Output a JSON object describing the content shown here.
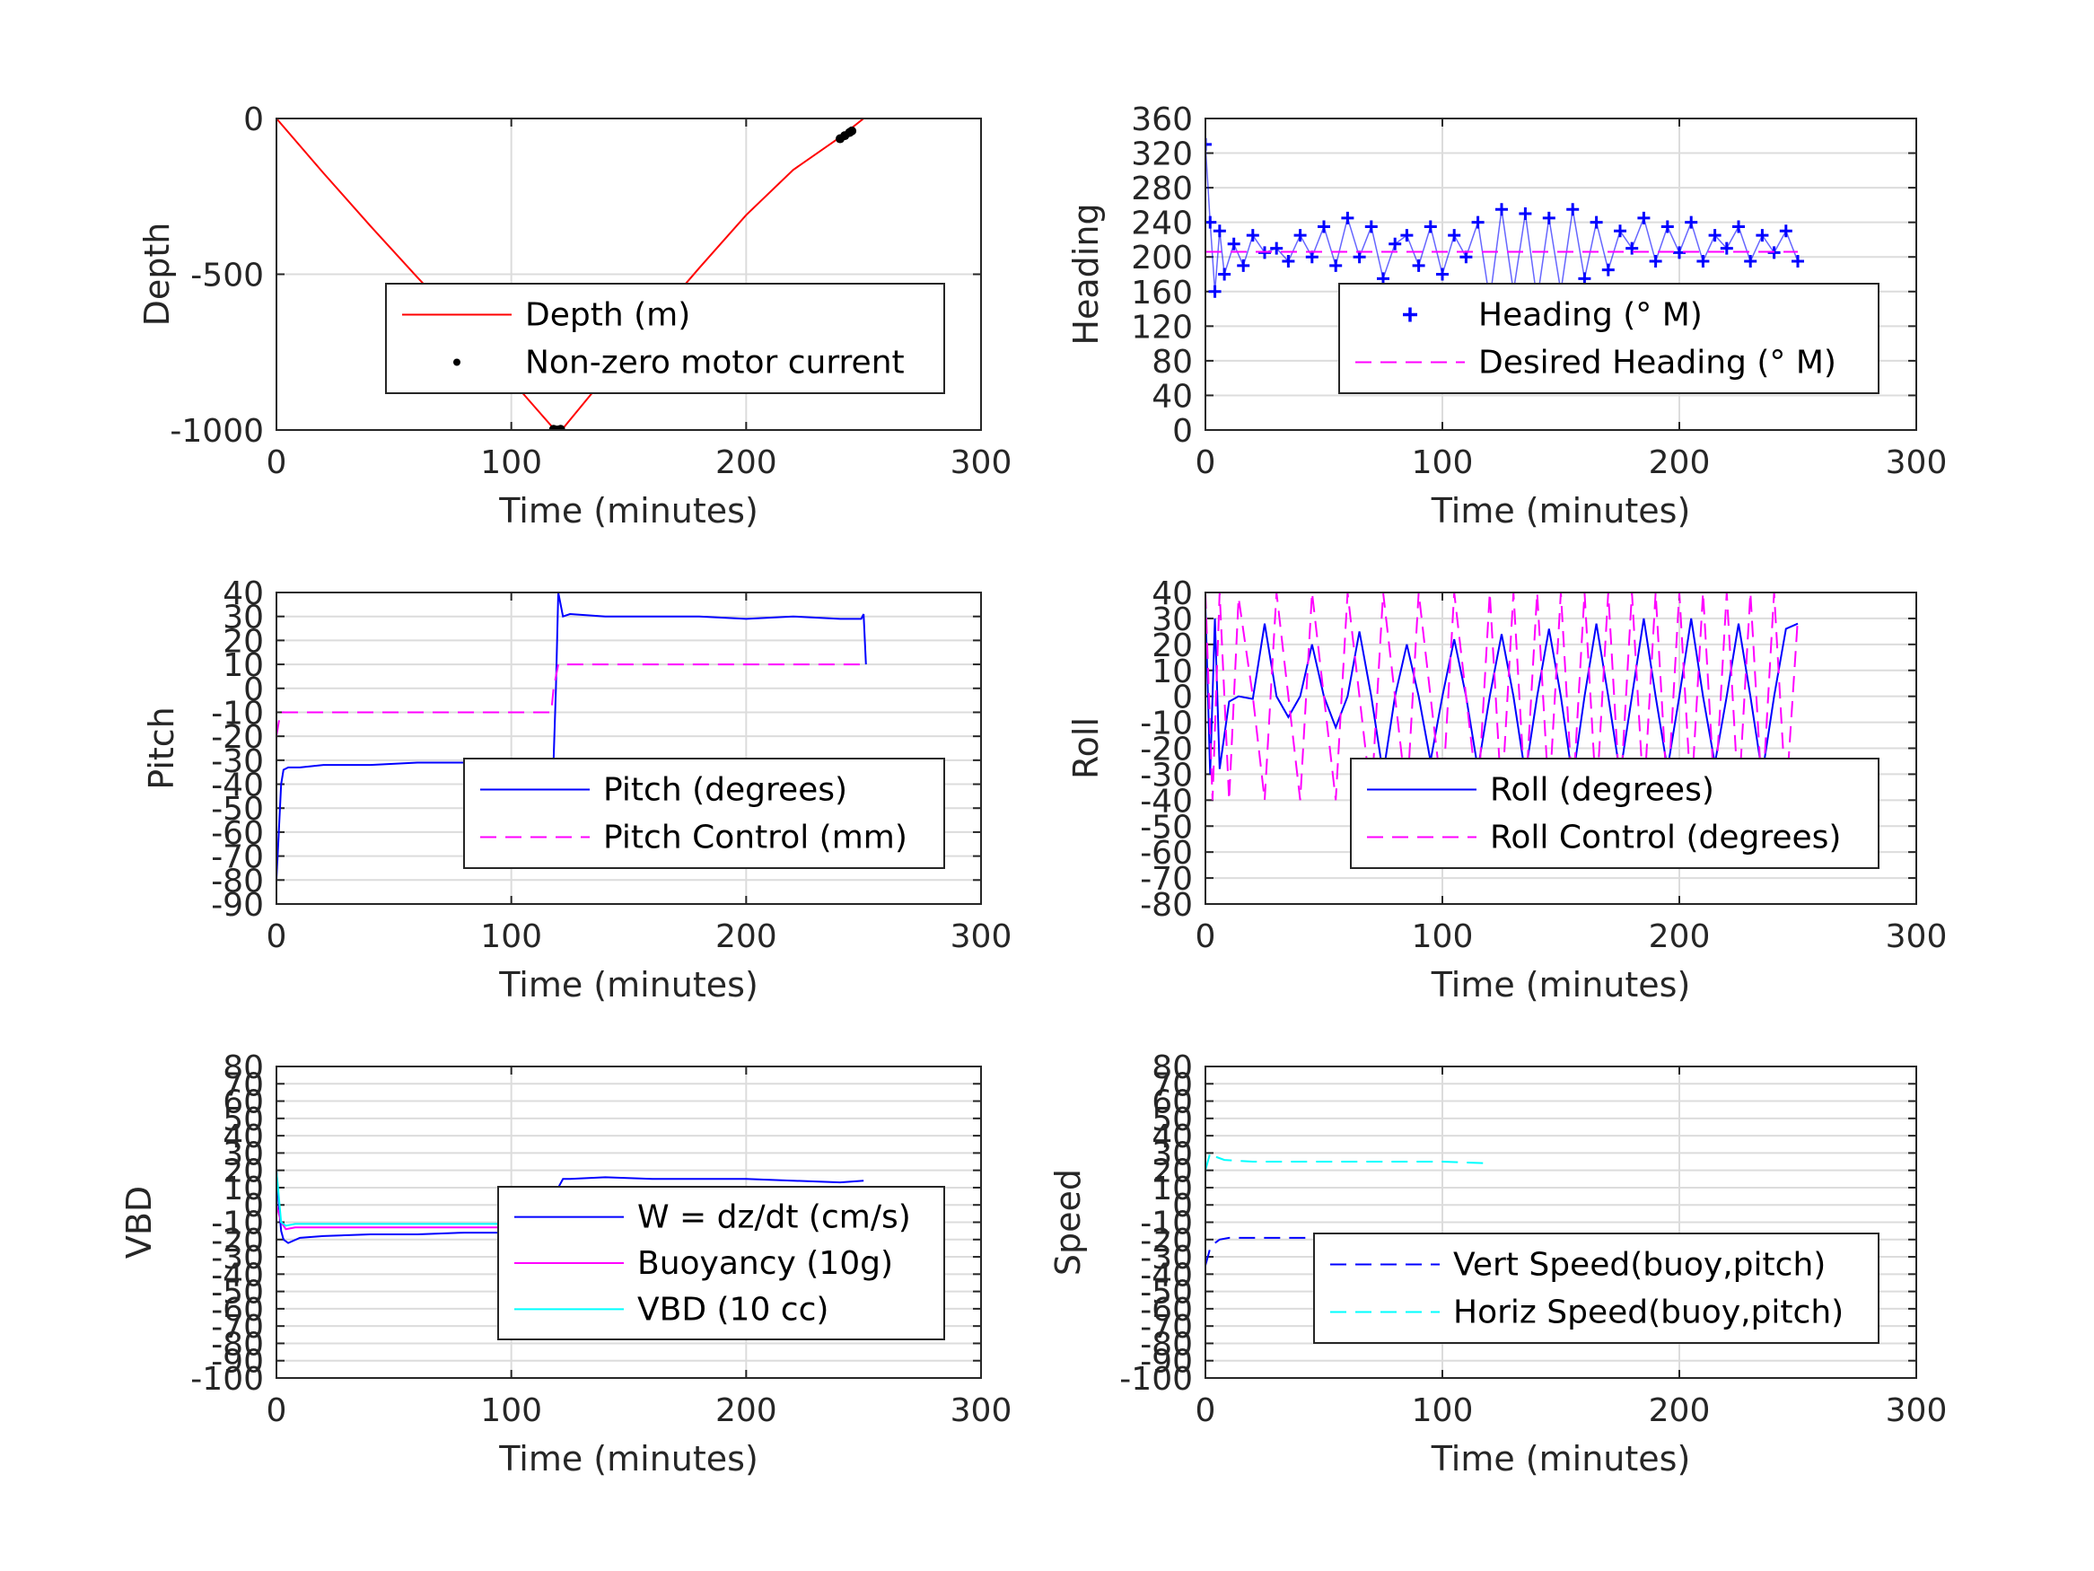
{
  "chart_data": [
    {
      "type": "line",
      "xlabel": "Time (minutes)",
      "ylabel": "Depth",
      "xlim": [
        0,
        300
      ],
      "ylim": [
        -1000,
        0
      ],
      "xticks": [
        "0",
        "100",
        "200",
        "300"
      ],
      "yticks": [
        "0",
        "-500",
        "-1000"
      ],
      "grid": true,
      "legend_position": "center-right",
      "series": [
        {
          "name": "Depth (m)",
          "color": "#ff0000",
          "style": "solid",
          "x": [
            0,
            20,
            40,
            60,
            80,
            100,
            118,
            120,
            122,
            140,
            160,
            180,
            200,
            220,
            240,
            250
          ],
          "y": [
            0,
            -175,
            -345,
            -510,
            -670,
            -840,
            -995,
            -1000,
            -995,
            -830,
            -655,
            -480,
            -310,
            -165,
            -60,
            0
          ]
        },
        {
          "name": "Non-zero motor current",
          "color": "#000000",
          "style": "marker",
          "x": [
            118,
            119,
            120,
            121,
            240,
            242,
            244,
            245
          ],
          "y": [
            -998,
            -1000,
            -1000,
            -998,
            -65,
            -55,
            -45,
            -40
          ]
        }
      ]
    },
    {
      "type": "scatter",
      "xlabel": "Time (minutes)",
      "ylabel": "Heading",
      "xlim": [
        0,
        300
      ],
      "ylim": [
        0,
        360
      ],
      "xticks": [
        "0",
        "100",
        "200",
        "300"
      ],
      "yticks": [
        "0",
        "40",
        "80",
        "120",
        "160",
        "200",
        "240",
        "280",
        "320",
        "360"
      ],
      "grid": true,
      "legend_position": "center-right",
      "series": [
        {
          "name": "Heading (° M)",
          "color": "#0000ff",
          "style": "plus",
          "x": [
            0,
            2,
            4,
            6,
            8,
            12,
            16,
            20,
            25,
            30,
            35,
            40,
            45,
            50,
            55,
            60,
            65,
            70,
            75,
            80,
            85,
            90,
            95,
            100,
            105,
            110,
            115,
            120,
            125,
            130,
            135,
            140,
            145,
            150,
            155,
            160,
            165,
            170,
            175,
            180,
            185,
            190,
            195,
            200,
            205,
            210,
            215,
            220,
            225,
            230,
            235,
            240,
            245,
            250
          ],
          "y": [
            330,
            240,
            160,
            230,
            180,
            215,
            190,
            225,
            205,
            210,
            195,
            225,
            200,
            235,
            190,
            245,
            200,
            235,
            175,
            215,
            225,
            190,
            235,
            180,
            225,
            200,
            240,
            150,
            255,
            160,
            250,
            150,
            245,
            160,
            255,
            175,
            240,
            185,
            230,
            210,
            245,
            195,
            235,
            205,
            240,
            195,
            225,
            210,
            235,
            195,
            225,
            205,
            230,
            195
          ]
        },
        {
          "name": "Desired Heading (° M)",
          "color": "#ff00ff",
          "style": "dashed",
          "x": [
            0,
            250
          ],
          "y": [
            206,
            206
          ]
        }
      ]
    },
    {
      "type": "line",
      "xlabel": "Time (minutes)",
      "ylabel": "Pitch",
      "xlim": [
        0,
        300
      ],
      "ylim": [
        -90,
        40
      ],
      "xticks": [
        "0",
        "100",
        "200",
        "300"
      ],
      "yticks": [
        "40",
        "30",
        "20",
        "10",
        "0",
        "-10",
        "-20",
        "-30",
        "-40",
        "-50",
        "-60",
        "-70",
        "-80",
        "-90"
      ],
      "grid": true,
      "legend_position": "center-right",
      "series": [
        {
          "name": "Pitch (degrees)",
          "color": "#0000ff",
          "style": "solid",
          "x": [
            0,
            1,
            2,
            3,
            5,
            10,
            20,
            40,
            60,
            80,
            100,
            115,
            118,
            119,
            120,
            122,
            125,
            140,
            160,
            180,
            200,
            220,
            240,
            249,
            250,
            251
          ],
          "y": [
            -80,
            -60,
            -40,
            -34,
            -33,
            -33,
            -32,
            -32,
            -31,
            -31,
            -30,
            -30,
            -30,
            0,
            40,
            30,
            31,
            30,
            30,
            30,
            29,
            30,
            29,
            29,
            31,
            10
          ]
        },
        {
          "name": "Pitch Control (mm)",
          "color": "#ff00ff",
          "style": "dashed",
          "x": [
            0,
            1,
            2,
            5,
            20,
            60,
            100,
            117,
            118,
            120,
            140,
            180,
            220,
            250
          ],
          "y": [
            -20,
            -14,
            -10,
            -10,
            -10,
            -10,
            -10,
            -10,
            0,
            10,
            10,
            10,
            10,
            10
          ]
        }
      ]
    },
    {
      "type": "line",
      "xlabel": "Time (minutes)",
      "ylabel": "Roll",
      "xlim": [
        0,
        300
      ],
      "ylim": [
        -80,
        40
      ],
      "xticks": [
        "0",
        "100",
        "200",
        "300"
      ],
      "yticks": [
        "40",
        "30",
        "20",
        "10",
        "0",
        "-10",
        "-20",
        "-30",
        "-40",
        "-50",
        "-60",
        "-70",
        "-80"
      ],
      "grid": true,
      "legend_position": "center-right",
      "series": [
        {
          "name": "Roll (degrees)",
          "color": "#0000ff",
          "style": "solid",
          "x": [
            0,
            2,
            4,
            6,
            10,
            14,
            20,
            25,
            30,
            35,
            40,
            45,
            50,
            55,
            60,
            65,
            70,
            75,
            80,
            85,
            90,
            95,
            100,
            105,
            110,
            115,
            120,
            125,
            130,
            135,
            140,
            145,
            150,
            155,
            160,
            165,
            170,
            175,
            180,
            185,
            190,
            195,
            200,
            205,
            210,
            215,
            220,
            225,
            230,
            235,
            240,
            245,
            250
          ],
          "y": [
            35,
            -30,
            30,
            -28,
            -2,
            0,
            -1,
            28,
            0,
            -8,
            0,
            20,
            0,
            -12,
            0,
            25,
            0,
            -30,
            0,
            20,
            0,
            -25,
            0,
            22,
            0,
            -28,
            0,
            24,
            0,
            -30,
            0,
            26,
            0,
            -32,
            0,
            28,
            0,
            -30,
            0,
            30,
            0,
            -28,
            0,
            30,
            0,
            -26,
            0,
            28,
            0,
            -30,
            0,
            26,
            28
          ]
        },
        {
          "name": "Roll Control (degrees)",
          "color": "#ff00ff",
          "style": "dashed",
          "x": [
            0,
            3,
            6,
            10,
            14,
            20,
            25,
            30,
            35,
            40,
            45,
            50,
            55,
            60,
            65,
            70,
            75,
            80,
            85,
            90,
            95,
            100,
            105,
            110,
            115,
            120,
            125,
            130,
            135,
            140,
            145,
            150,
            155,
            160,
            165,
            170,
            175,
            180,
            185,
            190,
            195,
            200,
            205,
            210,
            215,
            220,
            225,
            230,
            235,
            240,
            245,
            250
          ],
          "y": [
            40,
            -40,
            40,
            -40,
            38,
            0,
            -40,
            40,
            0,
            -40,
            40,
            0,
            -40,
            40,
            0,
            -40,
            40,
            0,
            -40,
            40,
            0,
            -40,
            40,
            0,
            -40,
            40,
            -40,
            40,
            -40,
            40,
            -40,
            40,
            -40,
            40,
            -40,
            40,
            -40,
            40,
            -40,
            40,
            -40,
            40,
            -40,
            40,
            -40,
            40,
            -40,
            40,
            -40,
            40,
            -40,
            30
          ]
        }
      ]
    },
    {
      "type": "line",
      "xlabel": "Time (minutes)",
      "ylabel": "VBD",
      "xlim": [
        0,
        300
      ],
      "ylim": [
        -100,
        80
      ],
      "xticks": [
        "0",
        "100",
        "200",
        "300"
      ],
      "yticks": [
        "80",
        "70",
        "60",
        "50",
        "40",
        "30",
        "20",
        "10",
        "0",
        "-10",
        "-20",
        "-30",
        "-40",
        "-50",
        "-60",
        "-70",
        "-80",
        "-90",
        "-100"
      ],
      "grid": true,
      "legend_position": "center-right",
      "series": [
        {
          "name": "W = dz/dt (cm/s)",
          "color": "#0000ff",
          "style": "solid",
          "x": [
            0,
            1,
            2,
            3,
            5,
            10,
            20,
            40,
            60,
            80,
            100,
            117,
            118,
            120,
            122,
            125,
            140,
            160,
            180,
            200,
            220,
            240,
            250
          ],
          "y": [
            20,
            0,
            -15,
            -20,
            -22,
            -19,
            -18,
            -17,
            -17,
            -16,
            -16,
            -16,
            -10,
            10,
            15,
            15,
            16,
            15,
            15,
            15,
            14,
            13,
            14
          ]
        },
        {
          "name": "Buoyancy (10g)",
          "color": "#ff00ff",
          "style": "solid",
          "x": [
            0,
            2,
            4,
            8,
            20,
            60,
            100,
            117,
            118,
            120,
            140,
            180,
            220,
            250
          ],
          "y": [
            0,
            -10,
            -14,
            -13,
            -13,
            -13,
            -13,
            -13,
            0,
            10,
            10,
            10,
            10,
            10
          ]
        },
        {
          "name": "VBD (10 cc)",
          "color": "#00ffff",
          "style": "solid",
          "x": [
            0,
            2,
            4,
            8,
            20,
            60,
            100,
            117,
            118,
            120,
            140,
            180,
            220,
            250
          ],
          "y": [
            20,
            -10,
            -12,
            -11,
            -11,
            -11,
            -11,
            -11,
            0,
            10,
            10,
            10,
            10,
            10
          ]
        }
      ]
    },
    {
      "type": "line",
      "xlabel": "Time (minutes)",
      "ylabel": "Speed",
      "xlim": [
        0,
        300
      ],
      "ylim": [
        -100,
        80
      ],
      "xticks": [
        "0",
        "100",
        "200",
        "300"
      ],
      "yticks": [
        "80",
        "70",
        "60",
        "50",
        "40",
        "30",
        "20",
        "10",
        "0",
        "-10",
        "-20",
        "-30",
        "-40",
        "-50",
        "-60",
        "-70",
        "-80",
        "-90",
        "-100"
      ],
      "grid": true,
      "legend_position": "lower-right",
      "series": [
        {
          "name": "Vert Speed(buoy,pitch)",
          "color": "#0000ff",
          "style": "dashed",
          "x": [
            0,
            2,
            4,
            6,
            10,
            20,
            40,
            60,
            80,
            100,
            112
          ],
          "y": [
            -35,
            -25,
            -22,
            -20,
            -19,
            -19,
            -19,
            -19,
            -19,
            -18,
            -18
          ]
        },
        {
          "name": "Horiz Speed(buoy,pitch)",
          "color": "#00ffff",
          "style": "dashed",
          "x": [
            0,
            2,
            4,
            8,
            20,
            40,
            60,
            80,
            100,
            120
          ],
          "y": [
            20,
            30,
            28,
            26,
            25,
            25,
            25,
            25,
            25,
            24
          ]
        }
      ]
    }
  ]
}
